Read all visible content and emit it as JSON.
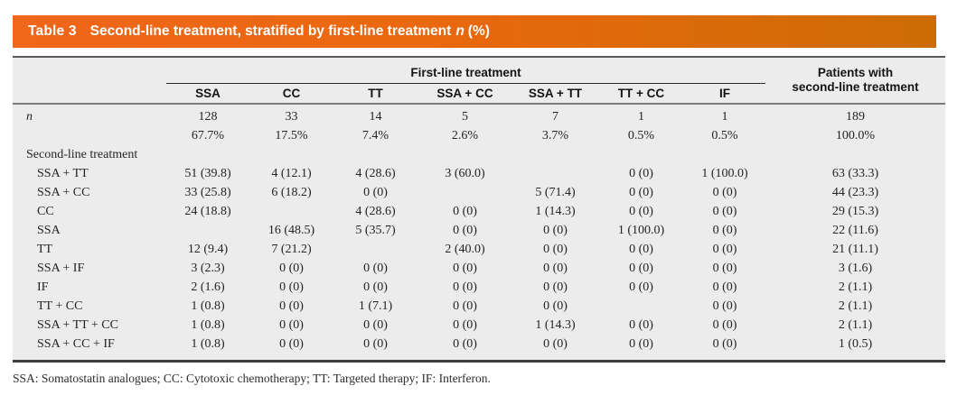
{
  "title": {
    "label": "Table 3",
    "text": "Second-line treatment, stratified by first-line treatment",
    "n": "n",
    "pct": "(%)"
  },
  "table": {
    "group_header": "First-line treatment",
    "total_header_line1": "Patients with",
    "total_header_line2": "second-line treatment",
    "columns": [
      "SSA",
      "CC",
      "TT",
      "SSA + CC",
      "SSA + TT",
      "TT + CC",
      "IF"
    ],
    "rows": [
      {
        "label": "n",
        "italic": true,
        "indent": false,
        "section": false,
        "values": [
          "128",
          "33",
          "14",
          "5",
          "7",
          "1",
          "1"
        ],
        "total": "189"
      },
      {
        "label": "",
        "italic": false,
        "indent": false,
        "section": false,
        "values": [
          "67.7%",
          "17.5%",
          "7.4%",
          "2.6%",
          "3.7%",
          "0.5%",
          "0.5%"
        ],
        "total": "100.0%"
      },
      {
        "label": "Second-line treatment",
        "italic": false,
        "indent": false,
        "section": true,
        "values": [
          "",
          "",
          "",
          "",
          "",
          "",
          ""
        ],
        "total": ""
      },
      {
        "label": "SSA + TT",
        "italic": false,
        "indent": true,
        "section": false,
        "values": [
          "51 (39.8)",
          "4 (12.1)",
          "4 (28.6)",
          "3 (60.0)",
          "",
          "0 (0)",
          "1 (100.0)"
        ],
        "total": "63 (33.3)"
      },
      {
        "label": "SSA + CC",
        "italic": false,
        "indent": true,
        "section": false,
        "values": [
          "33 (25.8)",
          "6 (18.2)",
          "0 (0)",
          "",
          "5 (71.4)",
          "0 (0)",
          "0 (0)"
        ],
        "total": "44 (23.3)"
      },
      {
        "label": "CC",
        "italic": false,
        "indent": true,
        "section": false,
        "values": [
          "24 (18.8)",
          "",
          "4 (28.6)",
          "0 (0)",
          "1 (14.3)",
          "0 (0)",
          "0 (0)"
        ],
        "total": "29 (15.3)"
      },
      {
        "label": "SSA",
        "italic": false,
        "indent": true,
        "section": false,
        "values": [
          "",
          "16 (48.5)",
          "5 (35.7)",
          "0 (0)",
          "0 (0)",
          "1 (100.0)",
          "0 (0)"
        ],
        "total": "22 (11.6)"
      },
      {
        "label": "TT",
        "italic": false,
        "indent": true,
        "section": false,
        "values": [
          "12 (9.4)",
          "7 (21.2)",
          "",
          "2 (40.0)",
          "0 (0)",
          "0 (0)",
          "0 (0)"
        ],
        "total": "21 (11.1)"
      },
      {
        "label": "SSA + IF",
        "italic": false,
        "indent": true,
        "section": false,
        "values": [
          "3 (2.3)",
          "0 (0)",
          "0 (0)",
          "0 (0)",
          "0 (0)",
          "0 (0)",
          "0 (0)"
        ],
        "total": "3 (1.6)"
      },
      {
        "label": "IF",
        "italic": false,
        "indent": true,
        "section": false,
        "values": [
          "2 (1.6)",
          "0 (0)",
          "0 (0)",
          "0 (0)",
          "0 (0)",
          "0 (0)",
          "0 (0)"
        ],
        "total": "2 (1.1)"
      },
      {
        "label": "TT + CC",
        "italic": false,
        "indent": true,
        "section": false,
        "values": [
          "1 (0.8)",
          "0 (0)",
          "1 (7.1)",
          "0 (0)",
          "0 (0)",
          "",
          "0 (0)"
        ],
        "total": "2 (1.1)"
      },
      {
        "label": "SSA + TT + CC",
        "italic": false,
        "indent": true,
        "section": false,
        "values": [
          "1 (0.8)",
          "0 (0)",
          "0 (0)",
          "0 (0)",
          "1 (14.3)",
          "0 (0)",
          "0 (0)"
        ],
        "total": "2 (1.1)"
      },
      {
        "label": "SSA + CC + IF",
        "italic": false,
        "indent": true,
        "section": false,
        "values": [
          "1 (0.8)",
          "0 (0)",
          "0 (0)",
          "0 (0)",
          "0 (0)",
          "0 (0)",
          "0 (0)"
        ],
        "total": "1 (0.5)"
      }
    ]
  },
  "footnote": "SSA: Somatostatin analogues; CC: Cytotoxic chemotherapy; TT: Targeted therapy; IF: Interferon.",
  "colors": {
    "banner_gradient_left": "#f0661a",
    "banner_gradient_right": "#cd6c04",
    "table_background": "#ececec"
  }
}
